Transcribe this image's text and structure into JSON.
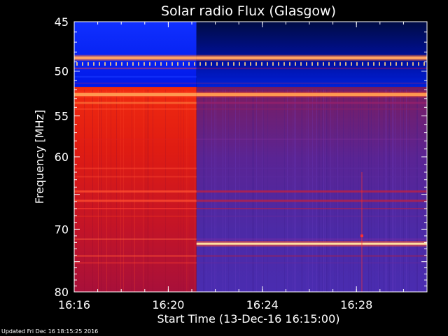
{
  "footer": {
    "updated": "Updated Fri Dec 16 18:15:25 2016"
  },
  "chart_data": {
    "type": "heatmap",
    "title": "Solar radio Flux (Glasgow)",
    "xlabel": "Start Time (13-Dec-16 16:15:00)",
    "ylabel": "Frequency [MHz]",
    "x_range_minutes": [
      16.0,
      31.0
    ],
    "y_range_mhz": [
      45,
      80
    ],
    "x_ticks": [
      {
        "label": "16:16",
        "minute": 16
      },
      {
        "label": "16:20",
        "minute": 20
      },
      {
        "label": "16:24",
        "minute": 24
      },
      {
        "label": "16:28",
        "minute": 28
      }
    ],
    "y_ticks": [
      {
        "label": "45",
        "value": 45
      },
      {
        "label": "50",
        "value": 50
      },
      {
        "label": "55",
        "value": 55
      },
      {
        "label": "60",
        "value": 60
      },
      {
        "label": "70",
        "value": 70
      },
      {
        "label": "80",
        "value": 80
      }
    ],
    "regime_change_minute": 21.2,
    "colors": {
      "background": "#000000",
      "low": "#0000cc",
      "mid": "#4a2aa8",
      "high": "#d01818",
      "peak": "#ffd060"
    }
  }
}
